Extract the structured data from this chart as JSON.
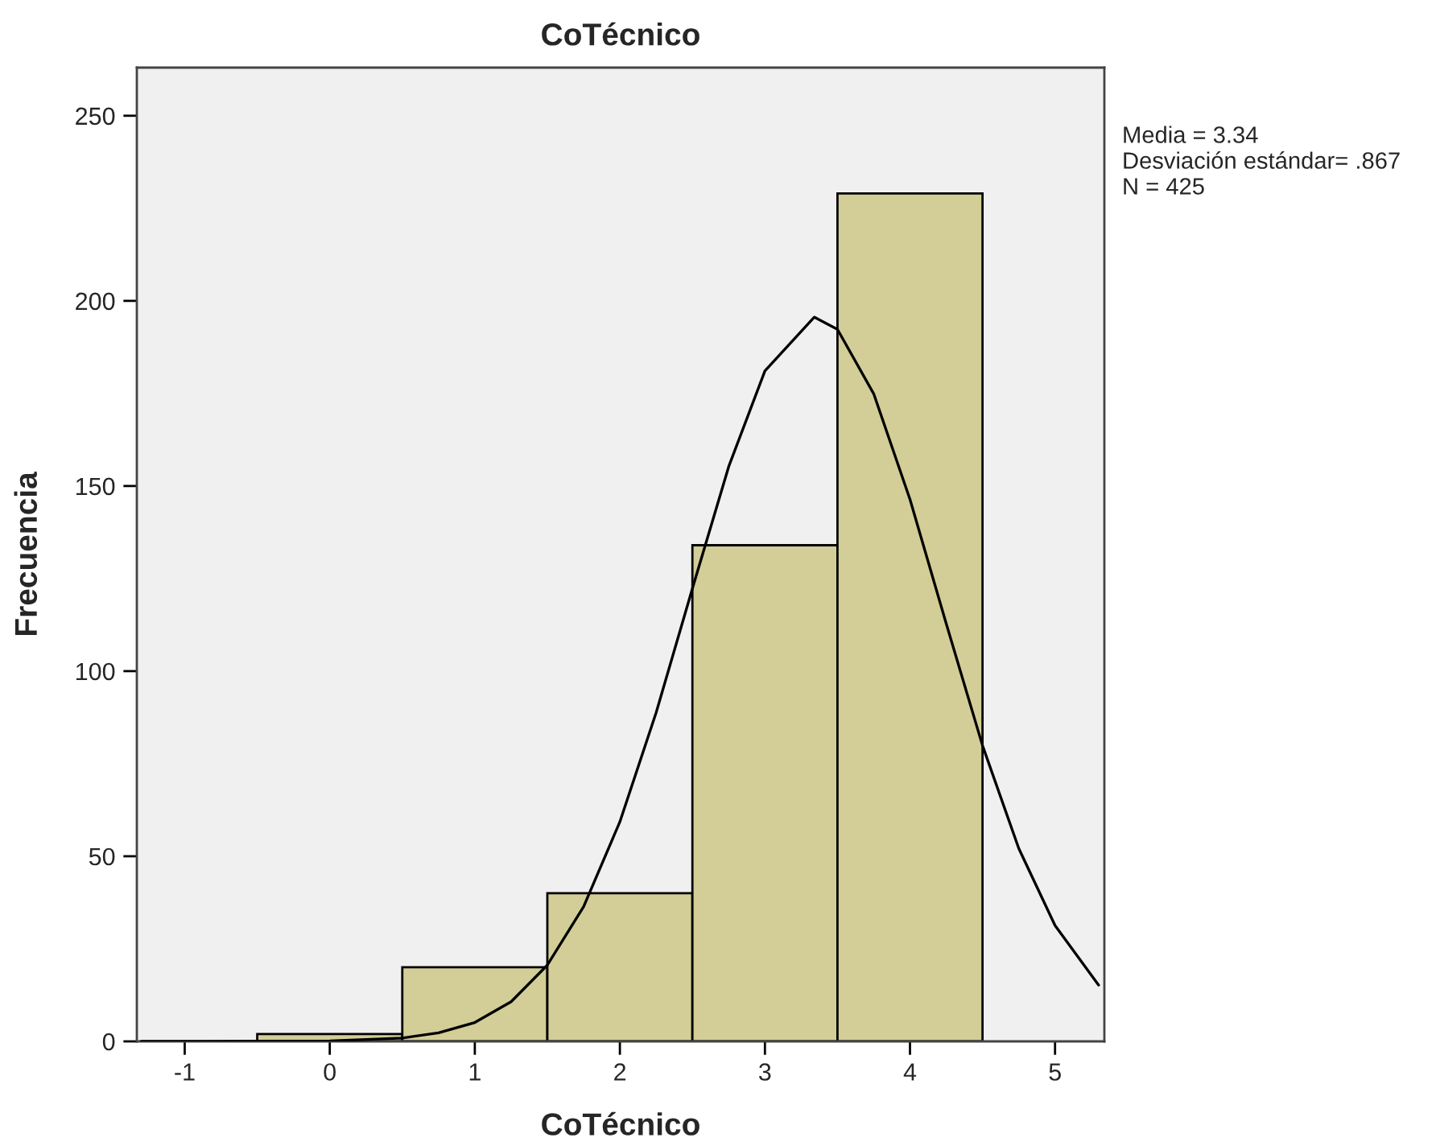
{
  "chart_data": {
    "type": "histogram",
    "title": "CoTécnico",
    "xlabel": "CoTécnico",
    "ylabel": "Frecuencia",
    "bins": [
      -0.5,
      0.5,
      1.5,
      2.5,
      3.5,
      4.5
    ],
    "values": [
      2,
      20,
      40,
      134,
      229
    ],
    "color": "#d3ce97",
    "series": [
      {
        "type": "line",
        "color": "#000000",
        "x": [
          -1.3,
          -1,
          0,
          0.5,
          0.75,
          1,
          1.25,
          1.5,
          1.75,
          2,
          2.25,
          2.5,
          2.75,
          3,
          3.34,
          3.5,
          3.75,
          4,
          4.25,
          4.5,
          4.75,
          5,
          5.3
        ],
        "values": [
          0,
          0,
          0.1,
          0.9,
          2.3,
          5.1,
          10.7,
          20.6,
          36.4,
          59.3,
          88.8,
          122.3,
          155.2,
          181.1,
          195.6,
          192.3,
          174.9,
          146.4,
          112.8,
          79.9,
          52.1,
          31.3,
          15.2
        ]
      }
    ],
    "annotations": [
      "Media = 3.34",
      "Desviación estándar= .867",
      "N = 425"
    ],
    "xlim": [
      -1.33,
      5.34
    ],
    "ylim": [
      0,
      263
    ],
    "xticks": [
      -1,
      0,
      1,
      2,
      3,
      4,
      5
    ],
    "yticks": [
      0,
      50,
      100,
      150,
      200,
      250
    ],
    "grid": false,
    "legend": false
  }
}
